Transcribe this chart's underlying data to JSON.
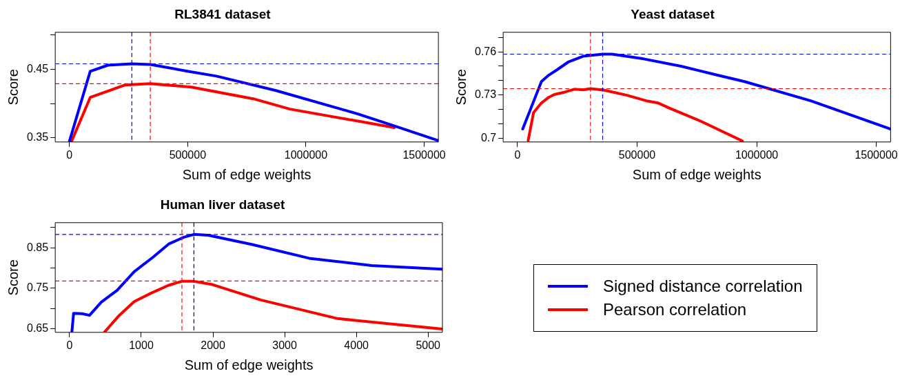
{
  "chart_data": [
    {
      "type": "line",
      "title": "RL3841 dataset",
      "xlabel": "Sum of edge weights",
      "ylabel": "Score",
      "xlim": [
        -60000,
        1560000
      ],
      "xticks": [
        0,
        500000,
        1000000,
        1500000
      ],
      "ylim": [
        0.344,
        0.504
      ],
      "yticks": [
        0.35,
        {
          "value": 0.4,
          "label": null
        },
        0.45,
        {
          "value": 0.5,
          "label": null
        }
      ],
      "grid": false,
      "marker": "none",
      "line_style": "solid",
      "legend": false,
      "series": [
        {
          "color": "#0000ff",
          "x": [
            0,
            88000,
            163000,
            264000,
            342000,
            503000,
            622000,
            873000,
            1219000,
            1368000,
            1560000
          ],
          "values": [
            0.345,
            0.447,
            0.456,
            0.458,
            0.457,
            0.447,
            0.44,
            0.419,
            0.385,
            0.368,
            0.346
          ]
        },
        {
          "color": "#ff0000",
          "x": [
            8000,
            88000,
            234000,
            342000,
            515000,
            777000,
            932000,
            1374000
          ],
          "values": [
            0.344,
            0.409,
            0.427,
            0.429,
            0.424,
            0.407,
            0.392,
            0.365
          ]
        }
      ],
      "ref_lines": [
        {
          "axis": "y",
          "value": 0.458,
          "color": "#0000ff",
          "line_style": "dashed"
        },
        {
          "axis": "y",
          "value": 0.429,
          "color": "#ff0000",
          "line_style": "dashed"
        },
        {
          "axis": "x",
          "value": 264000,
          "color": "#0000ff",
          "line_style": "dashed"
        },
        {
          "axis": "x",
          "value": 342000,
          "color": "#ff0000",
          "line_style": "dashed"
        }
      ]
    },
    {
      "type": "line",
      "title": "Yeast dataset",
      "xlabel": "Sum of edge weights",
      "ylabel": "Score",
      "xlim": [
        -60000,
        1560000
      ],
      "xticks": [
        0,
        500000,
        1000000,
        1500000
      ],
      "ylim": [
        0.6973,
        0.7736
      ],
      "yticks": [
        0.7,
        {
          "value": 0.71,
          "label": null
        },
        {
          "value": 0.72,
          "label": null
        },
        0.73,
        {
          "value": 0.74,
          "label": null
        },
        {
          "value": 0.75,
          "label": null
        },
        0.76,
        {
          "value": 0.77,
          "label": null
        }
      ],
      "grid": false,
      "marker": "none",
      "line_style": "solid",
      "legend": false,
      "series": [
        {
          "color": "#0000ff",
          "x": [
            21700,
            100000,
            130000,
            166000,
            214000,
            274000,
            356000,
            395000,
            527000,
            684000,
            828000,
            949000,
            1226000,
            1560000
          ],
          "values": [
            0.7063,
            0.7393,
            0.7437,
            0.7476,
            0.7531,
            0.7569,
            0.7584,
            0.7584,
            0.7551,
            0.75,
            0.7441,
            0.7393,
            0.7259,
            0.7063
          ]
        },
        {
          "color": "#ff0000",
          "x": [
            44500,
            67000,
            100000,
            130000,
            154000,
            196000,
            238000,
            274000,
            305000,
            359000,
            455000,
            539000,
            588000,
            636000,
            768000,
            940000
          ],
          "values": [
            0.6984,
            0.7177,
            0.7244,
            0.7283,
            0.7303,
            0.7319,
            0.734,
            0.7336,
            0.7344,
            0.7334,
            0.7299,
            0.7259,
            0.7244,
            0.7208,
            0.7116,
            0.698
          ]
        }
      ],
      "ref_lines": [
        {
          "axis": "y",
          "value": 0.7584,
          "color": "#0000ff",
          "line_style": "dashed"
        },
        {
          "axis": "y",
          "value": 0.7344,
          "color": "#ff0000",
          "line_style": "dashed"
        },
        {
          "axis": "x",
          "value": 305000,
          "color": "#ff0000",
          "line_style": "dashed"
        },
        {
          "axis": "x",
          "value": 356000,
          "color": "#0000ff",
          "line_style": "dashed"
        }
      ]
    },
    {
      "type": "line",
      "title": "Human liver dataset",
      "xlabel": "Sum of edge weights",
      "ylabel": "Score",
      "xlim": [
        -200,
        5200
      ],
      "xticks": [
        0,
        1000,
        2000,
        3000,
        4000,
        5000
      ],
      "ylim": [
        0.641,
        0.912
      ],
      "yticks": [
        0.65,
        {
          "value": 0.7,
          "label": null
        },
        0.75,
        {
          "value": 0.8,
          "label": null
        },
        0.85,
        {
          "value": 0.9,
          "label": null
        }
      ],
      "grid": false,
      "marker": "none",
      "line_style": "solid",
      "legend": "right",
      "series": [
        {
          "name": "Signed distance correlation",
          "color": "#0000ff",
          "x": [
            32,
            56,
            175,
            278,
            444,
            663,
            901,
            1159,
            1389,
            1595,
            1734,
            1932,
            2548,
            3341,
            4214,
            5198
          ],
          "values": [
            0.641,
            0.688,
            0.687,
            0.683,
            0.716,
            0.745,
            0.791,
            0.826,
            0.86,
            0.876,
            0.883,
            0.881,
            0.858,
            0.824,
            0.806,
            0.797
          ]
        },
        {
          "name": "Pearson correlation",
          "color": "#ff0000",
          "x": [
            484,
            683,
            901,
            1139,
            1377,
            1563,
            1734,
            1992,
            2667,
            3738,
            5198
          ],
          "values": [
            0.641,
            0.681,
            0.717,
            0.738,
            0.757,
            0.767,
            0.767,
            0.759,
            0.721,
            0.675,
            0.649
          ]
        }
      ],
      "ref_lines": [
        {
          "axis": "y",
          "value": 0.883,
          "color": "#0000ff",
          "line_style": "dashed"
        },
        {
          "axis": "y",
          "value": 0.768,
          "color": "#ff0000",
          "line_style": "dashed"
        },
        {
          "axis": "x",
          "value": 1567,
          "color": "#ff0000",
          "line_style": "dashed"
        },
        {
          "axis": "x",
          "value": 1734,
          "color": "#00008b",
          "line_style": "dashed"
        }
      ]
    }
  ]
}
